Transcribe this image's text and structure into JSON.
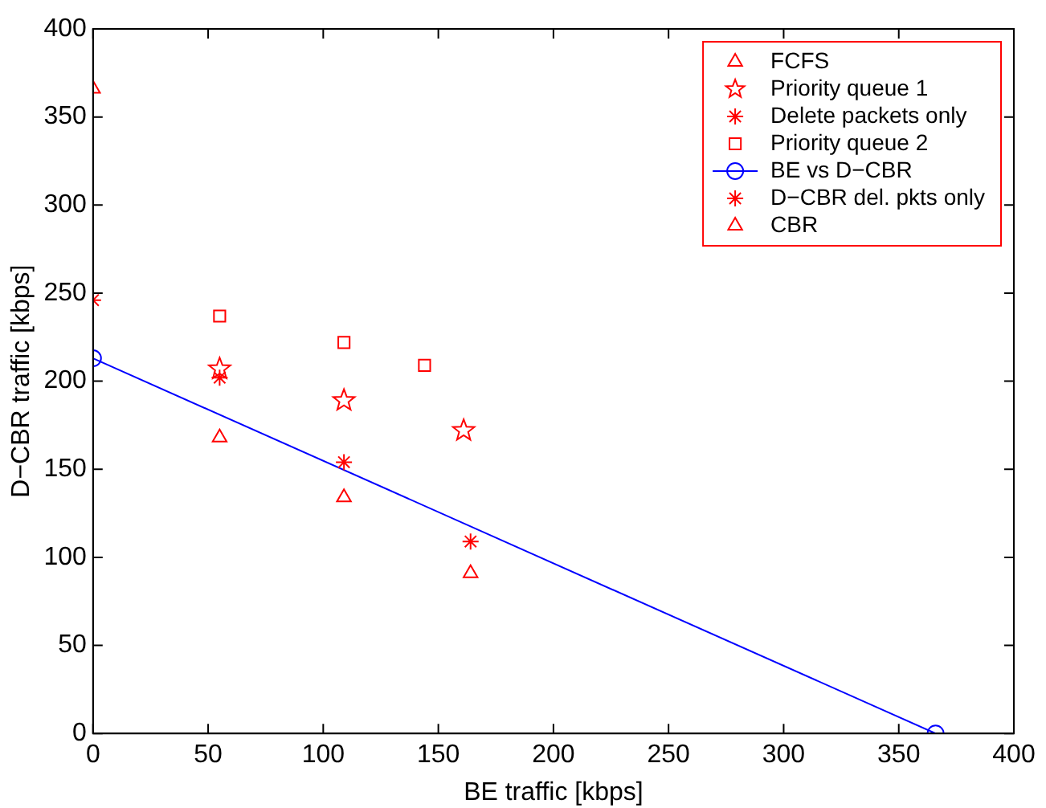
{
  "chart_data": {
    "type": "scatter",
    "xlabel": "BE traffic [kbps]",
    "ylabel": "D−CBR traffic [kbps]",
    "xlim": [
      0,
      400
    ],
    "ylim": [
      0,
      400
    ],
    "xticks": [
      0,
      50,
      100,
      150,
      200,
      250,
      300,
      350,
      400
    ],
    "yticks": [
      0,
      50,
      100,
      150,
      200,
      250,
      300,
      350,
      400
    ],
    "grid": false,
    "legend": "top right",
    "series": [
      {
        "name": "FCFS",
        "color": "#ff0000",
        "marker": "triangle",
        "x": [
          55,
          109,
          164
        ],
        "values": [
          168,
          134,
          91
        ]
      },
      {
        "name": "Priority queue 1",
        "color": "#ff0000",
        "marker": "star",
        "x": [
          55,
          109,
          161
        ],
        "values": [
          207,
          189,
          172
        ]
      },
      {
        "name": "Delete packets only",
        "color": "#ff0000",
        "marker": "cross",
        "x": [
          55,
          109,
          164
        ],
        "values": [
          202,
          154,
          109
        ]
      },
      {
        "name": "Priority queue 2",
        "color": "#ff0000",
        "marker": "square",
        "x": [
          55,
          109,
          144
        ],
        "values": [
          237,
          222,
          209
        ]
      },
      {
        "name": "BE vs D−CBR",
        "type": "line",
        "color": "#0000ff",
        "marker": "circle",
        "line_style": "solid",
        "x": [
          0,
          366
        ],
        "values": [
          213,
          0
        ]
      },
      {
        "name": "D−CBR del. pkts only",
        "color": "#ff0000",
        "marker": "cross",
        "x": [
          0
        ],
        "values": [
          246
        ]
      },
      {
        "name": "CBR",
        "color": "#ff0000",
        "marker": "triangle",
        "x": [
          0
        ],
        "values": [
          366
        ]
      }
    ]
  }
}
